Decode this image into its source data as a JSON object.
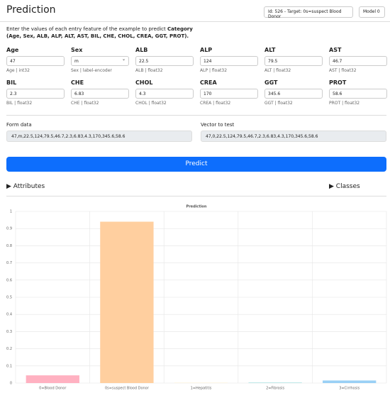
{
  "header": {
    "title": "Prediction",
    "example_select": "Id: 526 - Target: 0s=suspect Blood Donor",
    "model_select": "Model 0"
  },
  "instructions": {
    "text": "Enter the values of each entry feature of the example to predict",
    "target": "Category",
    "features": "(Age, Sex, ALB, ALP, ALT, AST, BIL, CHE, CHOL, CREA, GGT, PROT)."
  },
  "fields": [
    {
      "label": "Age",
      "value": "47",
      "hint": "Age | int32"
    },
    {
      "label": "Sex",
      "value": "m",
      "hint": "Sex | label-encoder"
    },
    {
      "label": "ALB",
      "value": "22.5",
      "hint": "ALB | float32"
    },
    {
      "label": "ALP",
      "value": "124",
      "hint": "ALP | float32"
    },
    {
      "label": "ALT",
      "value": "79.5",
      "hint": "ALT | float32"
    },
    {
      "label": "AST",
      "value": "46.7",
      "hint": "AST | float32"
    },
    {
      "label": "BIL",
      "value": "2.3",
      "hint": "BIL | float32"
    },
    {
      "label": "CHE",
      "value": "6.83",
      "hint": "CHE | float32"
    },
    {
      "label": "CHOL",
      "value": "4.3",
      "hint": "CHOL | float32"
    },
    {
      "label": "CREA",
      "value": "170",
      "hint": "CREA | float32"
    },
    {
      "label": "GGT",
      "value": "345.6",
      "hint": "GGT | float32"
    },
    {
      "label": "PROT",
      "value": "58.6",
      "hint": "PROT | float32"
    }
  ],
  "form_data": {
    "label": "Form data",
    "value": "47,m,22.5,124,79.5,46.7,2.3,6.83,4.3,170,345.6,58.6"
  },
  "vector": {
    "label": "Vector to test",
    "value": "47,0,22.5,124,79.5,46.7,2.3,6.83,4.3,170,345.6,58.6"
  },
  "button": "Predict",
  "sections": {
    "attributes": "Attributes",
    "classes": "Classes"
  },
  "chart_data": {
    "type": "bar",
    "title": "Prediction",
    "categories": [
      "0=Blood Donor",
      "0s=suspect Blood Donor",
      "1=Hepatitis",
      "2=Fibrosis",
      "3=Cirrhosis"
    ],
    "values": [
      0.045,
      0.94,
      0.001,
      0.003,
      0.015
    ],
    "colors": [
      "#ffb1c1",
      "#ffcf9f",
      "#ffe6aa",
      "#a5dfdf",
      "#9ad0f5"
    ],
    "ylim": [
      0,
      1
    ],
    "yticks": [
      0,
      0.1,
      0.2,
      0.3,
      0.4,
      0.5,
      0.6,
      0.7,
      0.8,
      0.9,
      1
    ],
    "grid": true
  }
}
